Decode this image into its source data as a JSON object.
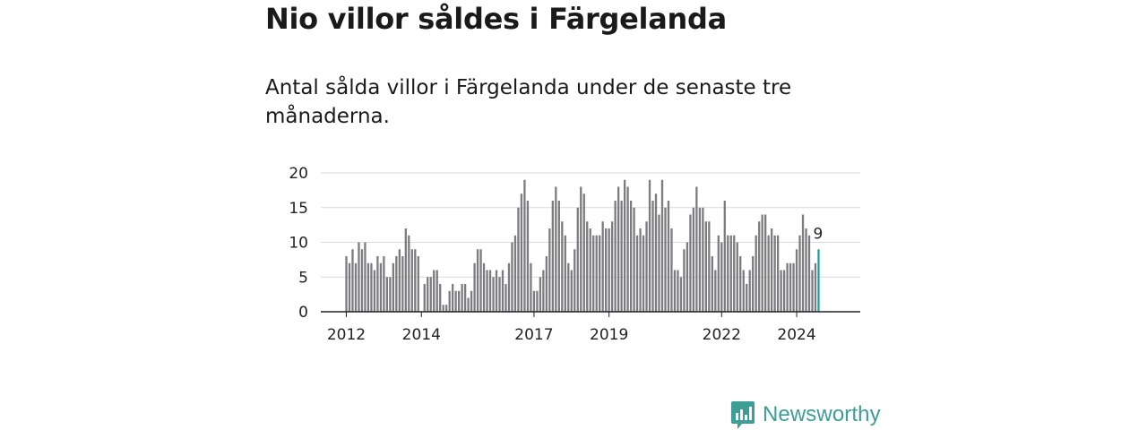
{
  "header": {
    "title": "Nio villor såldes i Färgelanda",
    "subtitle": "Antal sålda villor i Färgelanda under de senaste tre månaderna."
  },
  "brand": {
    "name": "Newsworthy",
    "color": "#3d9e96",
    "logo_icon": "bar-chart-speech-bubble-icon"
  },
  "chart_data": {
    "type": "bar",
    "title": "",
    "xlabel": "",
    "ylabel": "",
    "ylim": [
      0,
      20
    ],
    "yticks": [
      0,
      5,
      10,
      15,
      20
    ],
    "grid": "horizontal",
    "bar_color": "#7c7c80",
    "highlight_color": "#2aa198",
    "x_tick_labels": [
      {
        "label": "2012",
        "month": "2012-01"
      },
      {
        "label": "2014",
        "month": "2014-01"
      },
      {
        "label": "2017",
        "month": "2017-01"
      },
      {
        "label": "2019",
        "month": "2019-01"
      },
      {
        "label": "2022",
        "month": "2022-01"
      },
      {
        "label": "2024",
        "month": "2024-01"
      }
    ],
    "start_month": "2012-01",
    "values": [
      8,
      7,
      9,
      7,
      10,
      9,
      10,
      7,
      7,
      6,
      8,
      7,
      8,
      5,
      5,
      7,
      8,
      9,
      8,
      12,
      11,
      9,
      9,
      8,
      0,
      4,
      5,
      5,
      6,
      6,
      4,
      1,
      1,
      3,
      4,
      3,
      3,
      4,
      4,
      2,
      3,
      7,
      9,
      9,
      7,
      6,
      6,
      5,
      6,
      5,
      6,
      4,
      7,
      10,
      11,
      15,
      17,
      19,
      16,
      7,
      3,
      3,
      5,
      6,
      8,
      12,
      16,
      18,
      16,
      13,
      11,
      7,
      6,
      9,
      15,
      18,
      17,
      13,
      12,
      11,
      11,
      11,
      13,
      12,
      12,
      13,
      16,
      18,
      16,
      19,
      18,
      16,
      15,
      11,
      12,
      11,
      13,
      19,
      16,
      17,
      14,
      19,
      15,
      16,
      12,
      6,
      6,
      5,
      9,
      10,
      14,
      15,
      18,
      15,
      15,
      13,
      13,
      8,
      6,
      11,
      10,
      16,
      11,
      11,
      11,
      10,
      8,
      6,
      4,
      6,
      8,
      11,
      13,
      14,
      14,
      11,
      12,
      11,
      11,
      6,
      6,
      7,
      7,
      7,
      9,
      11,
      14,
      12,
      11,
      6,
      7,
      9
    ],
    "highlight": {
      "label": "9",
      "value": 9
    }
  }
}
